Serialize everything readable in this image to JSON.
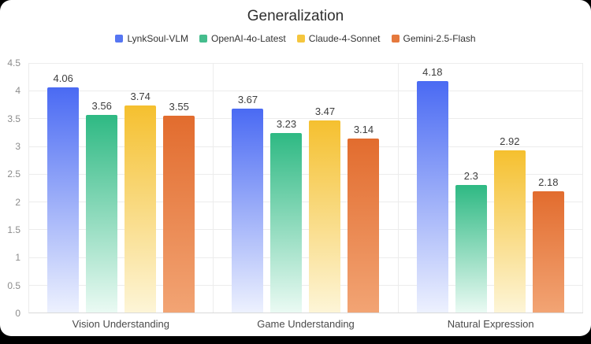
{
  "frame": {
    "background": "#000000",
    "card_background": "#ffffff"
  },
  "chart_data": {
    "type": "bar",
    "title": "Generalization",
    "categories": [
      "Vision Understanding",
      "Game Understanding",
      "Natural Expression"
    ],
    "series": [
      {
        "name": "LynkSoul-VLM",
        "values": [
          4.06,
          3.67,
          4.18
        ],
        "color": "#5676f2",
        "gradient_top": "#4a6af3",
        "gradient_bottom": "#edf1fe"
      },
      {
        "name": "OpenAI-4o-Latest",
        "values": [
          3.56,
          3.23,
          2.3
        ],
        "color": "#45bd8d",
        "gradient_top": "#2eb983",
        "gradient_bottom": "#eafaf3"
      },
      {
        "name": "Claude-4-Sonnet",
        "values": [
          3.74,
          3.47,
          2.92
        ],
        "color": "#f5c63e",
        "gradient_top": "#f5c02f",
        "gradient_bottom": "#fdf5d7"
      },
      {
        "name": "Gemini-2.5-Flash",
        "values": [
          3.55,
          3.14,
          2.18
        ],
        "color": "#e5793d",
        "gradient_top": "#e26c2e",
        "gradient_bottom": "#f2a474"
      }
    ],
    "ylim": [
      0,
      4.5
    ],
    "ytick_labels": [
      "0",
      "0.5",
      "1",
      "1.5",
      "2",
      "2.5",
      "3",
      "3.5",
      "4",
      "4.5"
    ],
    "grid": true,
    "legend_position": "top"
  }
}
